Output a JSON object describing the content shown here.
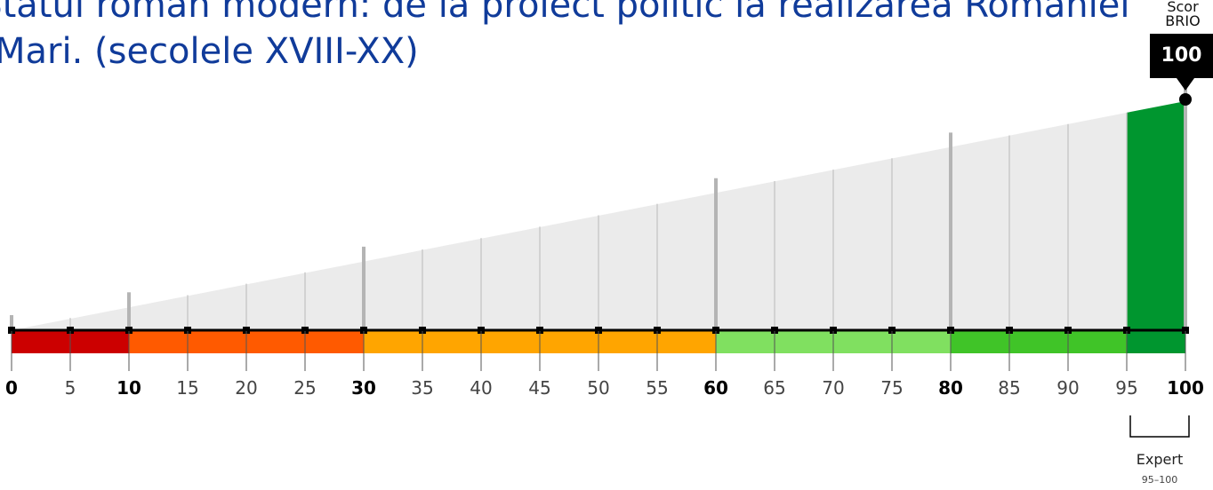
{
  "header": {
    "title_line1": "I. Statul român modern: de la proiect politic la realizarea României",
    "title_line2": "Mari. (secolele XVIII-XX)"
  },
  "score": {
    "label": "Scor BRIO",
    "value": "100"
  },
  "level": {
    "name": "Expert",
    "range": "95–100"
  },
  "chart_data": {
    "type": "bar",
    "x_range": [
      0,
      100
    ],
    "score": 100,
    "ticks": [
      0,
      5,
      10,
      15,
      20,
      25,
      30,
      35,
      40,
      45,
      50,
      55,
      60,
      65,
      70,
      75,
      80,
      85,
      90,
      95,
      100
    ],
    "tick_labels": [
      "0",
      "5",
      "10",
      "15",
      "20",
      "25",
      "30",
      "35",
      "40",
      "45",
      "50",
      "55",
      "60",
      "65",
      "70",
      "75",
      "80",
      "85",
      "90",
      "95",
      "100"
    ],
    "bold_ticks": [
      0,
      10,
      30,
      60,
      80,
      100
    ],
    "segments": [
      {
        "from": 0,
        "to": 10,
        "color": "#cc0000"
      },
      {
        "from": 10,
        "to": 30,
        "color": "#ff5a00"
      },
      {
        "from": 30,
        "to": 60,
        "color": "#ffa500"
      },
      {
        "from": 60,
        "to": 80,
        "color": "#80e060"
      },
      {
        "from": 80,
        "to": 95,
        "color": "#40c428"
      },
      {
        "from": 95,
        "to": 100,
        "color": "#00962f"
      }
    ],
    "fill_color": "#ebebeb",
    "highlight_color": "#00962f",
    "grid_color": "#c8c8c8",
    "major_grid_color": "#b4b4b4",
    "axis_color": "#000000"
  }
}
